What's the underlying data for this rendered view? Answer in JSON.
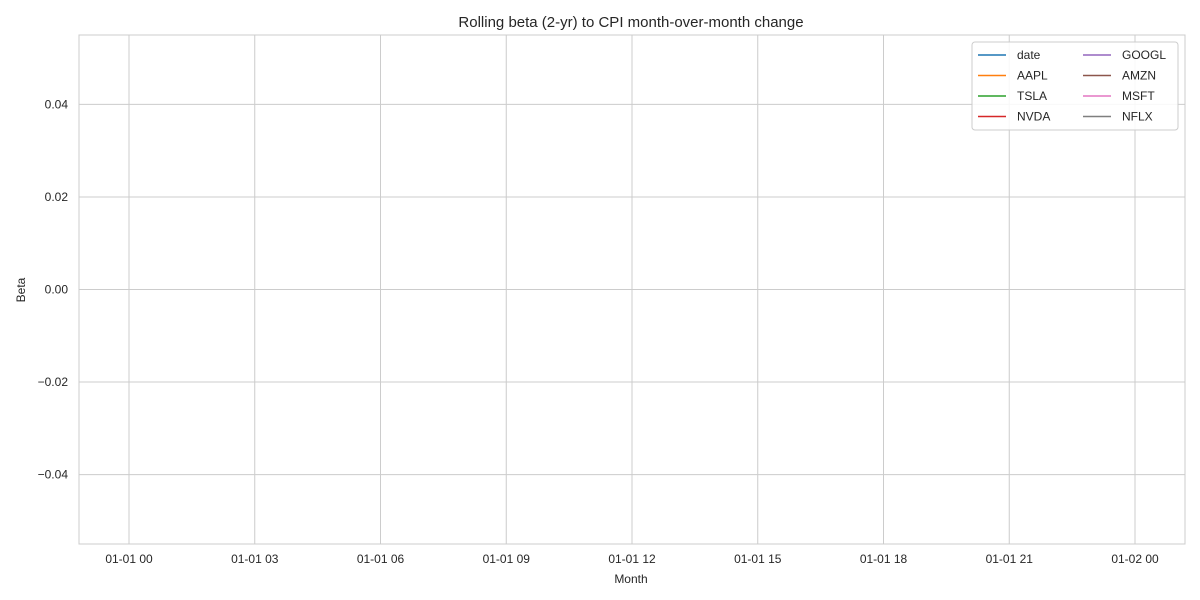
{
  "chart_data": {
    "type": "line",
    "title": "Rolling beta (2-yr) to CPI month-over-month change",
    "xlabel": "Month",
    "ylabel": "Beta",
    "x_ticks": [
      "01-01 00",
      "01-01 03",
      "01-01 06",
      "01-01 09",
      "01-01 12",
      "01-01 15",
      "01-01 18",
      "01-01 21",
      "01-02 00"
    ],
    "y_ticks": [
      "0.04",
      "0.02",
      "0.00",
      "−0.02",
      "−0.04"
    ],
    "y_tick_values": [
      0.04,
      0.02,
      0.0,
      -0.02,
      -0.04
    ],
    "ylim": [
      -0.055,
      0.055
    ],
    "grid": true,
    "legend_position": "top-right",
    "legend_columns": 2,
    "series": [
      {
        "name": "date",
        "color": "#1f77b4",
        "values": []
      },
      {
        "name": "AAPL",
        "color": "#ff7f0e",
        "values": []
      },
      {
        "name": "TSLA",
        "color": "#2ca02c",
        "values": []
      },
      {
        "name": "NVDA",
        "color": "#d62728",
        "values": []
      },
      {
        "name": "GOOGL",
        "color": "#9467bd",
        "values": []
      },
      {
        "name": "AMZN",
        "color": "#8c564b",
        "values": []
      },
      {
        "name": "MSFT",
        "color": "#e377c2",
        "values": []
      },
      {
        "name": "NFLX",
        "color": "#7f7f7f",
        "values": []
      }
    ]
  }
}
